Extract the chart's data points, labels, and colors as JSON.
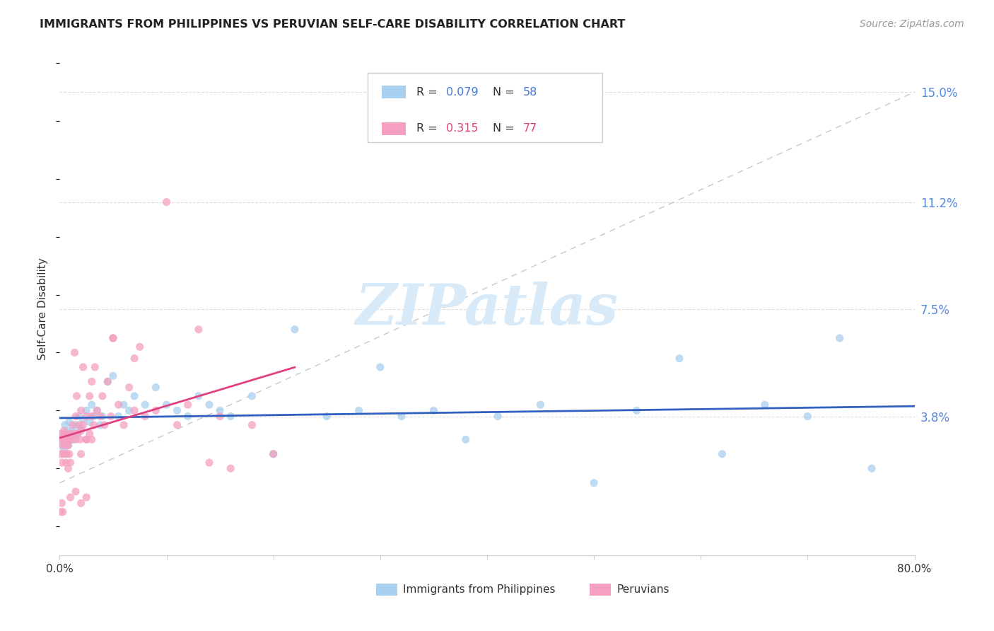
{
  "title": "IMMIGRANTS FROM PHILIPPINES VS PERUVIAN SELF-CARE DISABILITY CORRELATION CHART",
  "source": "Source: ZipAtlas.com",
  "ylabel": "Self-Care Disability",
  "series1_label": "Immigrants from Philippines",
  "series2_label": "Peruvians",
  "series1_R": 0.079,
  "series1_N": 58,
  "series2_R": 0.315,
  "series2_N": 77,
  "series1_color": "#a8d0f0",
  "series2_color": "#f5a0c0",
  "trend1_color": "#3060c0",
  "trend2_color": "#e04080",
  "ref_line_color": "#c8c8c8",
  "bg_color": "#ffffff",
  "grid_color": "#dddddd",
  "xlim": [
    0.0,
    0.8
  ],
  "ylim": [
    -0.01,
    0.16
  ],
  "xticks": [
    0.0,
    0.1,
    0.2,
    0.3,
    0.4,
    0.5,
    0.6,
    0.7,
    0.8
  ],
  "xticklabels": [
    "0.0%",
    "",
    "",
    "",
    "",
    "",
    "",
    "",
    "80.0%"
  ],
  "yticks_right": [
    0.038,
    0.075,
    0.112,
    0.15
  ],
  "yticklabels_right": [
    "3.8%",
    "7.5%",
    "11.2%",
    "15.0%"
  ],
  "watermark": "ZIPatlas",
  "watermark_color": "#d8eaf8",
  "series1_x": [
    0.001,
    0.002,
    0.003,
    0.004,
    0.005,
    0.006,
    0.007,
    0.008,
    0.009,
    0.01,
    0.012,
    0.013,
    0.015,
    0.016,
    0.018,
    0.02,
    0.022,
    0.025,
    0.028,
    0.03,
    0.032,
    0.035,
    0.038,
    0.04,
    0.045,
    0.05,
    0.055,
    0.06,
    0.065,
    0.07,
    0.08,
    0.09,
    0.1,
    0.11,
    0.12,
    0.13,
    0.14,
    0.15,
    0.16,
    0.18,
    0.2,
    0.22,
    0.25,
    0.28,
    0.3,
    0.32,
    0.35,
    0.38,
    0.41,
    0.45,
    0.5,
    0.54,
    0.58,
    0.62,
    0.66,
    0.7,
    0.73,
    0.76
  ],
  "series1_y": [
    0.03,
    0.028,
    0.032,
    0.027,
    0.035,
    0.03,
    0.033,
    0.028,
    0.036,
    0.031,
    0.033,
    0.03,
    0.035,
    0.032,
    0.038,
    0.034,
    0.037,
    0.04,
    0.036,
    0.042,
    0.038,
    0.04,
    0.035,
    0.038,
    0.05,
    0.052,
    0.038,
    0.042,
    0.04,
    0.045,
    0.042,
    0.048,
    0.042,
    0.04,
    0.038,
    0.045,
    0.042,
    0.04,
    0.038,
    0.045,
    0.025,
    0.068,
    0.038,
    0.04,
    0.055,
    0.038,
    0.04,
    0.03,
    0.038,
    0.042,
    0.015,
    0.04,
    0.058,
    0.025,
    0.042,
    0.038,
    0.065,
    0.02
  ],
  "series2_x": [
    0.001,
    0.001,
    0.002,
    0.002,
    0.003,
    0.003,
    0.004,
    0.004,
    0.005,
    0.005,
    0.006,
    0.006,
    0.007,
    0.007,
    0.008,
    0.008,
    0.009,
    0.009,
    0.01,
    0.01,
    0.011,
    0.012,
    0.013,
    0.014,
    0.015,
    0.015,
    0.016,
    0.017,
    0.018,
    0.019,
    0.02,
    0.02,
    0.022,
    0.022,
    0.025,
    0.025,
    0.028,
    0.028,
    0.03,
    0.03,
    0.032,
    0.033,
    0.035,
    0.038,
    0.04,
    0.042,
    0.045,
    0.048,
    0.05,
    0.055,
    0.06,
    0.065,
    0.07,
    0.075,
    0.08,
    0.09,
    0.1,
    0.11,
    0.12,
    0.13,
    0.14,
    0.15,
    0.16,
    0.18,
    0.2,
    0.02,
    0.025,
    0.03,
    0.05,
    0.07,
    0.001,
    0.002,
    0.003,
    0.01,
    0.015,
    0.02,
    0.025
  ],
  "series2_y": [
    0.03,
    0.025,
    0.032,
    0.022,
    0.028,
    0.025,
    0.033,
    0.03,
    0.032,
    0.025,
    0.028,
    0.022,
    0.03,
    0.025,
    0.028,
    0.02,
    0.03,
    0.025,
    0.032,
    0.022,
    0.03,
    0.035,
    0.032,
    0.06,
    0.03,
    0.038,
    0.045,
    0.032,
    0.035,
    0.03,
    0.033,
    0.04,
    0.035,
    0.055,
    0.03,
    0.038,
    0.032,
    0.045,
    0.05,
    0.03,
    0.035,
    0.055,
    0.04,
    0.038,
    0.045,
    0.035,
    0.05,
    0.038,
    0.065,
    0.042,
    0.035,
    0.048,
    0.04,
    0.062,
    0.038,
    0.04,
    0.112,
    0.035,
    0.042,
    0.068,
    0.022,
    0.038,
    0.02,
    0.035,
    0.025,
    0.025,
    0.03,
    0.038,
    0.065,
    0.058,
    0.005,
    0.008,
    0.005,
    0.01,
    0.012,
    0.008,
    0.01
  ]
}
